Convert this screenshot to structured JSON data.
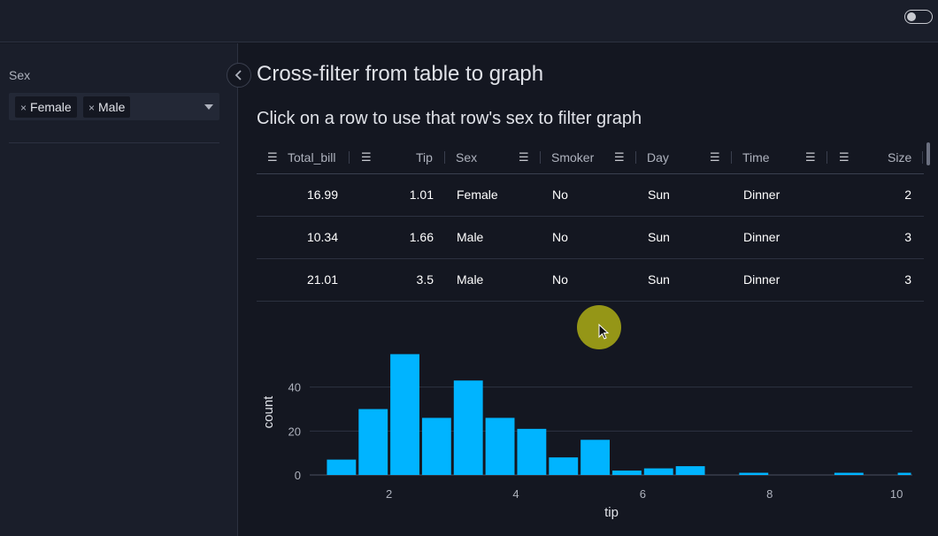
{
  "theme_toggle": {
    "state": "off"
  },
  "sidebar": {
    "filter_label": "Sex",
    "chips": [
      {
        "label": "Female"
      },
      {
        "label": "Male"
      }
    ],
    "collapse_icon": "chevron-left-icon"
  },
  "main": {
    "title": "Cross-filter from table to graph",
    "subtitle": "Click on a row to use that row's sex to filter graph"
  },
  "table": {
    "columns": [
      "Total_bill",
      "Tip",
      "Sex",
      "Smoker",
      "Day",
      "Time",
      "Size"
    ],
    "rows": [
      [
        "16.99",
        "1.01",
        "Female",
        "No",
        "Sun",
        "Dinner",
        "2"
      ],
      [
        "10.34",
        "1.66",
        "Male",
        "No",
        "Sun",
        "Dinner",
        "3"
      ],
      [
        "21.01",
        "3.5",
        "Male",
        "No",
        "Sun",
        "Dinner",
        "3"
      ]
    ]
  },
  "chart_data": {
    "type": "bar",
    "xlabel": "tip",
    "ylabel": "count",
    "xlim": [
      0.75,
      10.25
    ],
    "ylim": [
      0,
      60
    ],
    "xticks": [
      "2",
      "4",
      "6",
      "8",
      "10"
    ],
    "yticks": [
      "0",
      "20",
      "40"
    ],
    "bin_width": 0.5,
    "bins": [
      {
        "x0": 1.0,
        "x1": 1.5,
        "count": 7
      },
      {
        "x0": 1.5,
        "x1": 2.0,
        "count": 30
      },
      {
        "x0": 2.0,
        "x1": 2.5,
        "count": 55
      },
      {
        "x0": 2.5,
        "x1": 3.0,
        "count": 26
      },
      {
        "x0": 3.0,
        "x1": 3.5,
        "count": 43
      },
      {
        "x0": 3.5,
        "x1": 4.0,
        "count": 26
      },
      {
        "x0": 4.0,
        "x1": 4.5,
        "count": 21
      },
      {
        "x0": 4.5,
        "x1": 5.0,
        "count": 8
      },
      {
        "x0": 5.0,
        "x1": 5.5,
        "count": 16
      },
      {
        "x0": 5.5,
        "x1": 6.0,
        "count": 2
      },
      {
        "x0": 6.0,
        "x1": 6.5,
        "count": 3
      },
      {
        "x0": 6.5,
        "x1": 7.0,
        "count": 4
      },
      {
        "x0": 7.5,
        "x1": 8.0,
        "count": 1
      },
      {
        "x0": 9.0,
        "x1": 9.5,
        "count": 1
      },
      {
        "x0": 10.0,
        "x1": 10.5,
        "count": 1
      }
    ],
    "bar_color": "#00b4ff",
    "grid": true
  }
}
